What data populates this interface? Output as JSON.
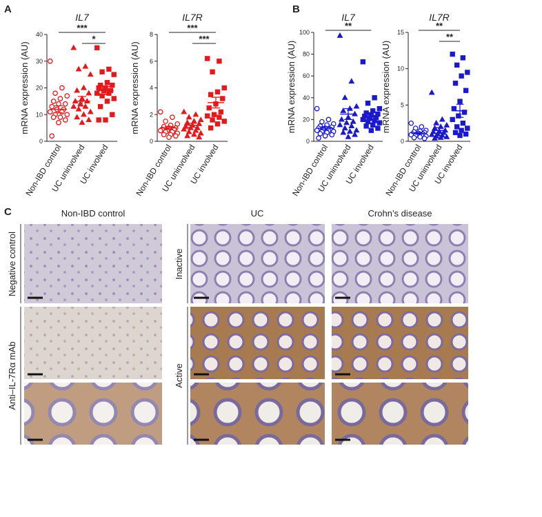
{
  "panels": [
    "A",
    "B",
    "C"
  ],
  "chart_data": [
    {
      "type": "scatter",
      "title": "IL7",
      "ylabel": "mRNA expression (AU)",
      "categories": [
        "Non-IBD control",
        "UC uninvolved",
        "UC involved"
      ],
      "ylim": [
        0,
        40
      ],
      "yticks": [
        0,
        10,
        20,
        30,
        40
      ],
      "series": [
        {
          "color": "#e31a1c",
          "marker": "circle",
          "filled": false,
          "mean": 12,
          "error": 1.3,
          "values": [
            30,
            20,
            18,
            17,
            16,
            15,
            14,
            14,
            13,
            12,
            12,
            11,
            11,
            10,
            10,
            9,
            9,
            8,
            7,
            2
          ]
        },
        {
          "color": "#e31a1c",
          "marker": "triangle",
          "filled": true,
          "mean": 15,
          "error": 1.8,
          "values": [
            35,
            28,
            27,
            25,
            20,
            19,
            18,
            16,
            15,
            15,
            14,
            13,
            13,
            12,
            11,
            10,
            9,
            8,
            7
          ]
        },
        {
          "color": "#e31a1c",
          "marker": "square",
          "filled": true,
          "mean": 19,
          "error": 1.5,
          "values": [
            35,
            27,
            26,
            25,
            22,
            21,
            21,
            20,
            20,
            19,
            19,
            18,
            18,
            17,
            16,
            15,
            13,
            10,
            8,
            8
          ]
        }
      ],
      "significance": [
        {
          "from": 0,
          "to": 2,
          "label": "***"
        },
        {
          "from": 1,
          "to": 2,
          "label": "*"
        }
      ]
    },
    {
      "type": "scatter",
      "title": "IL7R",
      "ylabel": "mRNA expression (AU)",
      "categories": [
        "Non-IBD control",
        "UC uninvolved",
        "UC involved"
      ],
      "ylim": [
        0,
        8
      ],
      "yticks": [
        0,
        2,
        4,
        6,
        8
      ],
      "series": [
        {
          "color": "#e31a1c",
          "marker": "circle",
          "filled": false,
          "mean": 1.0,
          "error": 0.1,
          "values": [
            2.2,
            1.8,
            1.5,
            1.3,
            1.2,
            1.1,
            1.0,
            1.0,
            0.9,
            0.9,
            0.8,
            0.8,
            0.7,
            0.7,
            0.6,
            0.5,
            0.5,
            0.4,
            0.3
          ]
        },
        {
          "color": "#e31a1c",
          "marker": "triangle",
          "filled": true,
          "mean": 1.2,
          "error": 0.15,
          "values": [
            2.2,
            2.0,
            1.8,
            1.6,
            1.5,
            1.4,
            1.3,
            1.2,
            1.1,
            1.0,
            1.0,
            0.9,
            0.8,
            0.7,
            0.6,
            0.5,
            0.4,
            0.3
          ]
        },
        {
          "color": "#e31a1c",
          "marker": "square",
          "filled": true,
          "mean": 2.9,
          "error": 0.4,
          "values": [
            6.2,
            6.0,
            5.2,
            4.0,
            3.7,
            3.5,
            3.2,
            2.8,
            2.5,
            2.2,
            2.0,
            1.9,
            1.8,
            1.6,
            1.5,
            1.3,
            1.0
          ]
        }
      ],
      "significance": [
        {
          "from": 0,
          "to": 2,
          "label": "***"
        },
        {
          "from": 1,
          "to": 2,
          "label": "***"
        }
      ]
    },
    {
      "type": "scatter",
      "title": "IL7",
      "ylabel": "mRNA expression (AU)",
      "categories": [
        "Non-IBD control",
        "UC uninvolved",
        "UC involved"
      ],
      "ylim": [
        0,
        100
      ],
      "yticks": [
        0,
        20,
        40,
        60,
        80,
        100
      ],
      "series": [
        {
          "color": "#1a1acc",
          "marker": "circle",
          "filled": false,
          "mean": 12,
          "error": 1.4,
          "values": [
            30,
            20,
            18,
            16,
            15,
            14,
            13,
            12,
            12,
            11,
            11,
            10,
            10,
            9,
            9,
            8,
            7,
            6,
            5,
            3
          ]
        },
        {
          "color": "#1a1acc",
          "marker": "triangle",
          "filled": true,
          "mean": 25,
          "error": 5,
          "values": [
            97,
            55,
            40,
            32,
            30,
            28,
            25,
            22,
            20,
            18,
            17,
            15,
            14,
            12,
            10,
            9,
            8,
            6,
            4
          ]
        },
        {
          "color": "#1a1acc",
          "marker": "square",
          "filled": true,
          "mean": 23,
          "error": 3.3,
          "values": [
            73,
            40,
            35,
            30,
            28,
            26,
            25,
            24,
            23,
            22,
            21,
            20,
            19,
            18,
            17,
            15,
            14,
            12,
            10
          ]
        }
      ],
      "significance": [
        {
          "from": 0,
          "to": 2,
          "label": "**"
        }
      ]
    },
    {
      "type": "scatter",
      "title": "IL7R",
      "ylabel": "mRNA expression (AU)",
      "categories": [
        "Non-IBD control",
        "UC uninvolved",
        "UC involved"
      ],
      "ylim": [
        0,
        15
      ],
      "yticks": [
        0,
        5,
        10,
        15
      ],
      "series": [
        {
          "color": "#1a1acc",
          "marker": "circle",
          "filled": false,
          "mean": 1.1,
          "error": 0.13,
          "values": [
            2.5,
            2.0,
            1.8,
            1.5,
            1.4,
            1.3,
            1.2,
            1.1,
            1.0,
            1.0,
            0.9,
            0.9,
            0.8,
            0.8,
            0.7,
            0.6,
            0.5,
            0.4
          ]
        },
        {
          "color": "#1a1acc",
          "marker": "triangle",
          "filled": true,
          "mean": 1.5,
          "error": 0.4,
          "values": [
            6.7,
            3.0,
            2.5,
            2.2,
            2.0,
            1.8,
            1.5,
            1.4,
            1.3,
            1.2,
            1.0,
            0.9,
            0.8,
            0.7,
            0.6,
            0.5,
            0.4
          ]
        },
        {
          "color": "#1a1acc",
          "marker": "square",
          "filled": true,
          "mean": 4.2,
          "error": 0.9,
          "values": [
            12,
            11.5,
            10.5,
            9.5,
            9.0,
            8.0,
            7.0,
            5.5,
            4.5,
            4.0,
            3.5,
            3.0,
            2.5,
            2.0,
            1.8,
            1.5,
            1.2,
            1.0,
            0.8
          ]
        }
      ],
      "significance": [
        {
          "from": 0,
          "to": 2,
          "label": "**"
        },
        {
          "from": 1,
          "to": 2,
          "label": "**"
        }
      ]
    }
  ],
  "histology": {
    "columns": [
      "Non-IBD control",
      "UC",
      "Crohn’s disease"
    ],
    "rows_left": [
      "Negative control",
      "Anti–IL-7Rα mAb"
    ],
    "rows_right": [
      "Inactive",
      "Active"
    ]
  }
}
